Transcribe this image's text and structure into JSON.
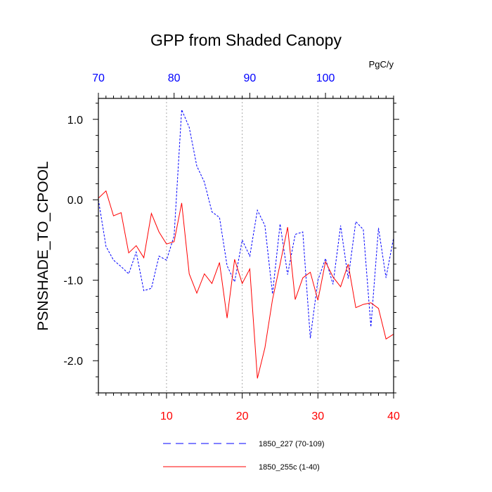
{
  "chart_data": {
    "type": "line",
    "title": "GPP from Shaded Canopy",
    "ylabel": "PSNSHADE_TO_CPOOL",
    "units_label": "PgC/y",
    "ylim": [
      -2.4,
      1.26
    ],
    "yticks": [
      1.0,
      0.0,
      -1.0,
      -2.0
    ],
    "ytick_labels": [
      "1.0",
      "0.0",
      "-1.0",
      "-2.0"
    ],
    "grid": "vertical dotted lines at bottom major ticks",
    "legend_position": "bottom",
    "x_bottom": {
      "xlim": [
        1,
        40
      ],
      "ticks": [
        10,
        20,
        30,
        40
      ],
      "tick_labels": [
        "10",
        "20",
        "30",
        "40"
      ],
      "color": "#ff0000"
    },
    "x_top": {
      "xlim": [
        70,
        109
      ],
      "ticks": [
        70,
        80,
        90,
        100
      ],
      "tick_labels": [
        "70",
        "80",
        "90",
        "100"
      ],
      "color": "#0000ff"
    },
    "series": [
      {
        "name": "1850_227 (70-109)",
        "color": "#0000ff",
        "style": "dashed",
        "axis": "top",
        "x": [
          70,
          71,
          72,
          73,
          74,
          75,
          76,
          77,
          78,
          79,
          80,
          81,
          82,
          83,
          84,
          85,
          86,
          87,
          88,
          89,
          90,
          91,
          92,
          93,
          94,
          95,
          96,
          97,
          98,
          99,
          100,
          101,
          102,
          103,
          104,
          105,
          106,
          107,
          108,
          109
        ],
        "values": [
          0.0,
          -0.58,
          -0.75,
          -0.83,
          -0.92,
          -0.65,
          -1.13,
          -1.1,
          -0.7,
          -0.75,
          -0.45,
          1.12,
          0.9,
          0.42,
          0.22,
          -0.15,
          -0.22,
          -0.82,
          -1.02,
          -0.5,
          -0.7,
          -0.13,
          -0.32,
          -1.17,
          -0.3,
          -0.93,
          -0.43,
          -0.4,
          -1.72,
          -1.0,
          -0.73,
          -1.05,
          -0.32,
          -0.98,
          -0.27,
          -0.37,
          -1.58,
          -0.35,
          -0.97,
          -0.47
        ]
      },
      {
        "name": "1850_255c (1-40)",
        "color": "#ff0000",
        "style": "solid",
        "axis": "bottom",
        "x": [
          1,
          2,
          3,
          4,
          5,
          6,
          7,
          8,
          9,
          10,
          11,
          12,
          13,
          14,
          15,
          16,
          17,
          18,
          19,
          20,
          21,
          22,
          23,
          24,
          25,
          26,
          27,
          28,
          29,
          30,
          31,
          32,
          33,
          34,
          35,
          36,
          37,
          38,
          39,
          40
        ],
        "values": [
          0.02,
          0.11,
          -0.2,
          -0.16,
          -0.66,
          -0.57,
          -0.72,
          -0.17,
          -0.4,
          -0.55,
          -0.52,
          -0.04,
          -0.92,
          -1.16,
          -0.92,
          -1.04,
          -0.78,
          -1.47,
          -0.74,
          -1.04,
          -0.86,
          -2.22,
          -1.84,
          -1.24,
          -0.8,
          -0.34,
          -1.24,
          -0.97,
          -0.9,
          -1.25,
          -0.77,
          -0.96,
          -1.08,
          -0.8,
          -1.34,
          -1.3,
          -1.28,
          -1.35,
          -1.73,
          -1.67
        ]
      }
    ]
  }
}
